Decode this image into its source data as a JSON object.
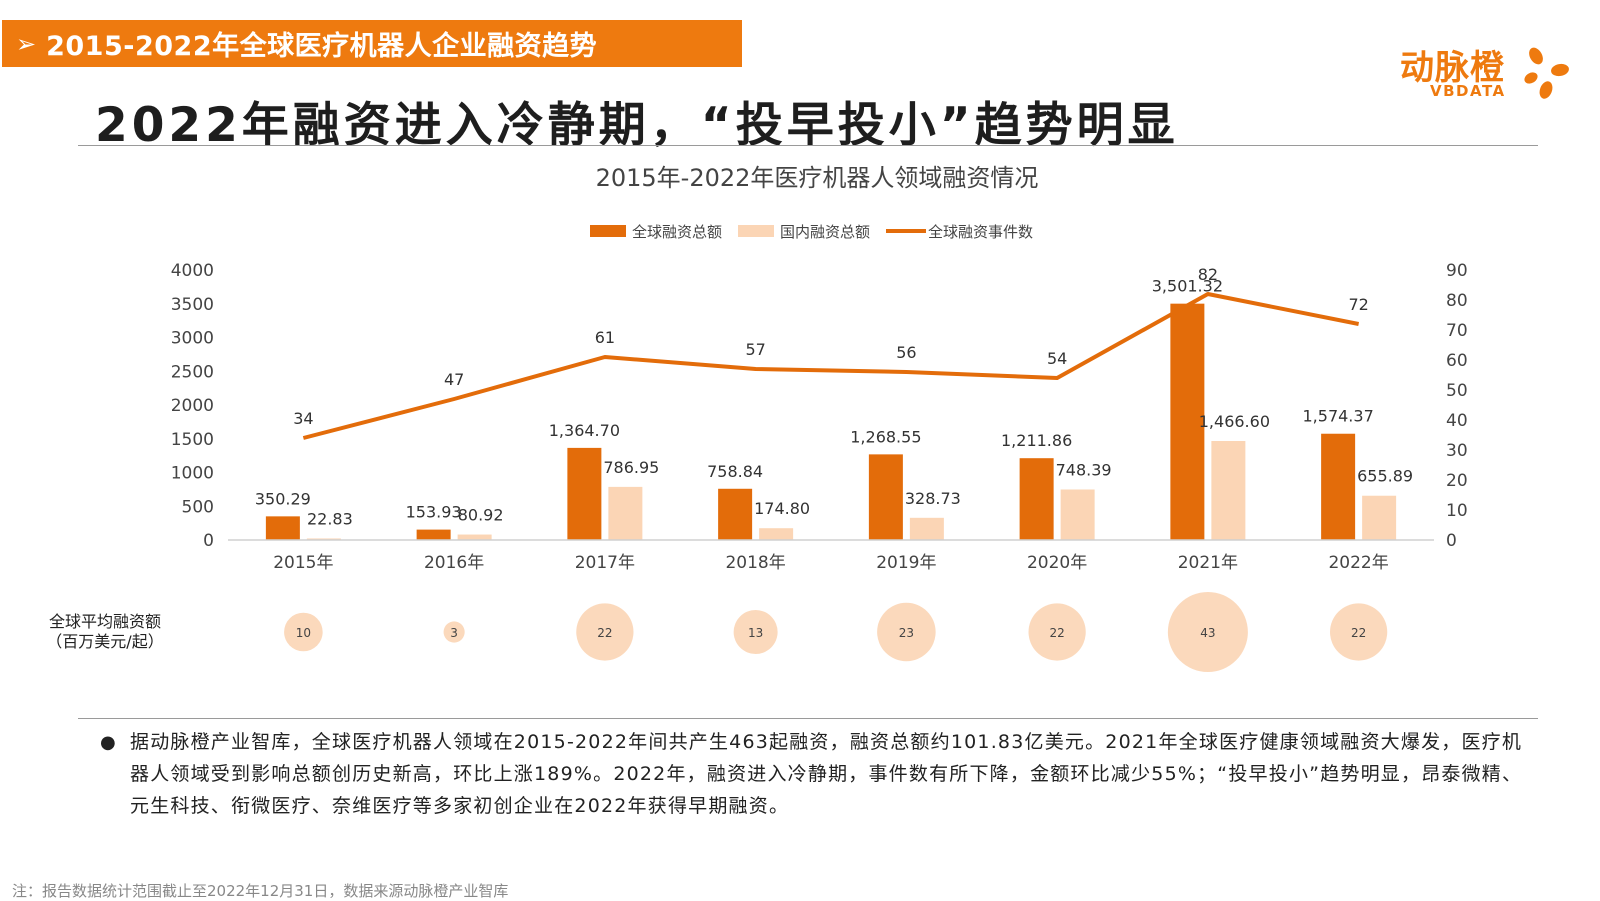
{
  "header": {
    "arrow": "➢",
    "title": "2015-2022年全球医疗机器人企业融资趋势"
  },
  "logo": {
    "cn": "动脉橙",
    "en": "VBDATA",
    "icon": "vbdata-logo-mark",
    "color": "#ee7a0f"
  },
  "main_title": "2022年融资进入冷静期，“投早投小”趋势明显",
  "bubble_label": [
    "全球平均融资额",
    "（百万美元/起）"
  ],
  "body_text": "据动脉橙产业智库，全球医疗机器人领域在2015-2022年间共产生463起融资，融资总额约101.83亿美元。2021年全球医疗健康领域融资大爆发，医疗机器人领域受到影响总额创历史新高，环比上涨189%。2022年，融资进入冷静期，事件数有所下降，金额环比减少55%；“投早投小”趋势明显，昂泰微精、元生科技、衔微医疗、奈维医疗等多家初创企业在2022年获得早期融资。",
  "footnote": "注：报告数据统计范围截止至2022年12月31日，数据来源动脉橙产业智库",
  "chart_data": {
    "type": "bar",
    "title": "2015年-2022年医疗机器人领域融资情况",
    "categories": [
      "2015年",
      "2016年",
      "2017年",
      "2018年",
      "2019年",
      "2020年",
      "2021年",
      "2022年"
    ],
    "series": [
      {
        "name": "全球融资总额",
        "kind": "bar",
        "axis": "left",
        "color": "#e36c0a",
        "values": [
          350.29,
          153.93,
          1364.7,
          758.84,
          1268.55,
          1211.86,
          3501.32,
          1574.37
        ],
        "labels": [
          "350.29",
          "153.93",
          "1,364.70",
          "758.84",
          "1,268.55",
          "1,211.86",
          "3,501.32",
          "1,574.37"
        ]
      },
      {
        "name": "国内融资总额",
        "kind": "bar",
        "axis": "left",
        "color": "#fbd5b5",
        "values": [
          22.83,
          80.92,
          786.95,
          174.8,
          328.73,
          748.39,
          1466.6,
          655.89
        ],
        "labels": [
          "22.83",
          "80.92",
          "786.95",
          "174.80",
          "328.73",
          "748.39",
          "1,466.60",
          "655.89"
        ]
      },
      {
        "name": "全球融资事件数",
        "kind": "line",
        "axis": "right",
        "color": "#e36c0a",
        "values": [
          34,
          47,
          61,
          57,
          56,
          54,
          82,
          72
        ]
      }
    ],
    "bubbles": {
      "values": [
        10,
        3,
        22,
        13,
        23,
        22,
        43,
        22
      ],
      "color": "#fbd5b5"
    },
    "ylim_left": [
      0,
      4000
    ],
    "yticks_left": [
      0,
      500,
      1000,
      1500,
      2000,
      2500,
      3000,
      3500,
      4000
    ],
    "ylim_right": [
      0,
      90
    ],
    "yticks_right": [
      0,
      10,
      20,
      30,
      40,
      50,
      60,
      70,
      80,
      90
    ],
    "legend": "top",
    "grid": false
  }
}
